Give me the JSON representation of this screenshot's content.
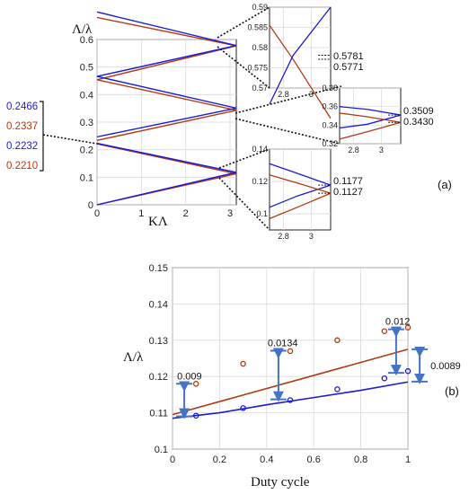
{
  "colors": {
    "blue": "#1a1adc",
    "red": "#b23a12",
    "arrow": "#4472c4",
    "grid": "#d9d9d9"
  },
  "chart_data": [
    {
      "id": "a-main",
      "type": "line",
      "panel_label": "(a)",
      "xlabel": "KΛ",
      "ylabel": "Λ/λ",
      "xlim": [
        0,
        3.1416
      ],
      "ylim": [
        0,
        0.6
      ],
      "xticks": [
        "0",
        "1",
        "2",
        "3"
      ],
      "yticks": [
        "0",
        "0.1",
        "0.2",
        "0.3",
        "0.4",
        "0.5",
        "0.6"
      ],
      "grid": true,
      "side_values": [
        {
          "text": "0.2466",
          "color": "blue"
        },
        {
          "text": "0.2337",
          "color": "red"
        },
        {
          "text": "0.2232",
          "color": "blue"
        },
        {
          "text": "0.2210",
          "color": "red"
        }
      ],
      "bands_blue": [
        [
          0.0,
          0.1177
        ],
        [
          0.2232,
          0.1177
        ],
        [
          0.2466,
          0.3509
        ],
        [
          0.4661,
          0.3509
        ],
        [
          0.4661,
          0.5781
        ],
        [
          0.7,
          0.5781
        ]
      ],
      "bands_red": [
        [
          0.0,
          0.1127
        ],
        [
          0.221,
          0.1127
        ],
        [
          0.2337,
          0.343
        ],
        [
          0.454,
          0.343
        ],
        [
          0.454,
          0.5771
        ],
        [
          0.68,
          0.5771
        ]
      ]
    },
    {
      "id": "a-inset-top",
      "type": "line",
      "xlim": [
        2.7,
        3.14
      ],
      "ylim": [
        0.57,
        0.59
      ],
      "xticks": [
        "2.8",
        "3"
      ],
      "yticks": [
        "0.57",
        "0.575",
        "0.58",
        "0.585",
        "0.59"
      ],
      "labels": [
        "0.5781",
        "0.5771"
      ],
      "values": [
        0.5781,
        0.5771
      ]
    },
    {
      "id": "a-inset-mid",
      "type": "line",
      "xlim": [
        2.7,
        3.14
      ],
      "ylim": [
        0.32,
        0.38
      ],
      "xticks": [
        "2.8",
        "3"
      ],
      "yticks": [
        "0.32",
        "0.34",
        "0.36",
        "0.38"
      ],
      "labels": [
        "0.3509",
        "0.3430"
      ],
      "values": [
        0.3509,
        0.343
      ]
    },
    {
      "id": "a-inset-bot",
      "type": "line",
      "xlim": [
        2.7,
        3.14
      ],
      "ylim": [
        0.09,
        0.14
      ],
      "xticks": [
        "2.8",
        "3"
      ],
      "yticks": [
        "0.1",
        "0.12",
        "0.14"
      ],
      "labels": [
        "0.1177",
        "0.1127"
      ],
      "values": [
        0.1177,
        0.1127
      ]
    },
    {
      "id": "b",
      "type": "scatter",
      "panel_label": "(b)",
      "xlabel": "Duty cycle",
      "ylabel": "Λ/λ",
      "xlim": [
        0,
        1
      ],
      "ylim": [
        0.1,
        0.15
      ],
      "xticks": [
        "0",
        "0.2",
        "0.4",
        "0.6",
        "0.8",
        "1"
      ],
      "yticks": [
        "0.1",
        "0.11",
        "0.12",
        "0.13",
        "0.14",
        "0.15"
      ],
      "grid": true,
      "series": [
        {
          "color": "red",
          "x": [
            0.1,
            0.3,
            0.5,
            0.7,
            0.9,
            1.0
          ],
          "y": [
            0.118,
            0.1235,
            0.127,
            0.13,
            0.1325,
            0.1335
          ]
        },
        {
          "color": "blue",
          "x": [
            0.1,
            0.3,
            0.5,
            0.7,
            0.9,
            1.0
          ],
          "y": [
            0.1092,
            0.1113,
            0.1135,
            0.1165,
            0.1195,
            0.1215
          ]
        }
      ],
      "fit_red": {
        "x": [
          0.0,
          1.0
        ],
        "y": [
          0.1095,
          0.1275
        ]
      },
      "fit_blue": {
        "x": [
          0.0,
          0.2,
          0.4,
          0.6,
          0.8,
          1.0
        ],
        "y": [
          0.1085,
          0.11,
          0.1122,
          0.1142,
          0.1162,
          0.1185
        ]
      },
      "gaps": [
        {
          "label": "0.009",
          "x": 0.05,
          "y1": 0.109,
          "y2": 0.118
        },
        {
          "label": "0.0134",
          "x": 0.45,
          "y1": 0.1137,
          "y2": 0.1271
        },
        {
          "label": "0.012",
          "x": 0.95,
          "y1": 0.121,
          "y2": 0.133
        },
        {
          "label": "0.0089",
          "x": 1.05,
          "y1": 0.1186,
          "y2": 0.1275
        }
      ]
    }
  ]
}
